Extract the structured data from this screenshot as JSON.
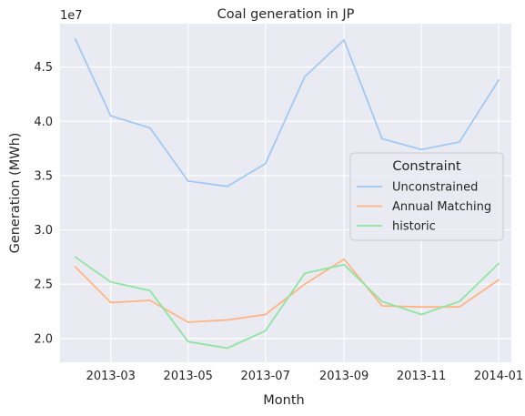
{
  "chart_data": {
    "type": "line",
    "title": "Coal generation in JP",
    "xlabel": "Month",
    "ylabel": "Generation (MWh)",
    "y_offset_label": "1e7",
    "y_scale": 10000000,
    "x": [
      "2013-02-01",
      "2013-03-01",
      "2013-04-01",
      "2013-05-01",
      "2013-06-01",
      "2013-07-01",
      "2013-08-01",
      "2013-09-01",
      "2013-10-01",
      "2013-11-01",
      "2013-12-01",
      "2014-01-01"
    ],
    "xlim": [
      "2013-01-20",
      "2014-01-11"
    ],
    "x_ticks": [
      {
        "date": "2013-03-01",
        "label": "2013-03"
      },
      {
        "date": "2013-05-01",
        "label": "2013-05"
      },
      {
        "date": "2013-07-01",
        "label": "2013-07"
      },
      {
        "date": "2013-09-01",
        "label": "2013-09"
      },
      {
        "date": "2013-11-01",
        "label": "2013-11"
      },
      {
        "date": "2014-01-01",
        "label": "2014-01"
      }
    ],
    "ylim": [
      17800000,
      49000000
    ],
    "y_ticks": [
      {
        "value": 20000000,
        "label": "2.0"
      },
      {
        "value": 25000000,
        "label": "2.5"
      },
      {
        "value": 30000000,
        "label": "3.0"
      },
      {
        "value": 35000000,
        "label": "3.5"
      },
      {
        "value": 40000000,
        "label": "4.0"
      },
      {
        "value": 45000000,
        "label": "4.5"
      }
    ],
    "grid": true,
    "legend": {
      "title": "Constraint",
      "placement": "center-right"
    },
    "series": [
      {
        "name": "Unconstrained",
        "color": "#a1c9f4",
        "values": [
          47600000,
          40500000,
          39400000,
          34500000,
          34000000,
          36100000,
          44100000,
          47500000,
          38400000,
          37400000,
          38100000,
          43800000
        ]
      },
      {
        "name": "Annual Matching",
        "color": "#ffb482",
        "values": [
          26600000,
          23300000,
          23500000,
          21500000,
          21700000,
          22200000,
          25000000,
          27300000,
          23000000,
          22900000,
          22900000,
          25400000
        ]
      },
      {
        "name": "historic",
        "color": "#8de5a1",
        "values": [
          27500000,
          25200000,
          24400000,
          19700000,
          19100000,
          20700000,
          26000000,
          26800000,
          23400000,
          22200000,
          23400000,
          26900000
        ]
      }
    ]
  }
}
